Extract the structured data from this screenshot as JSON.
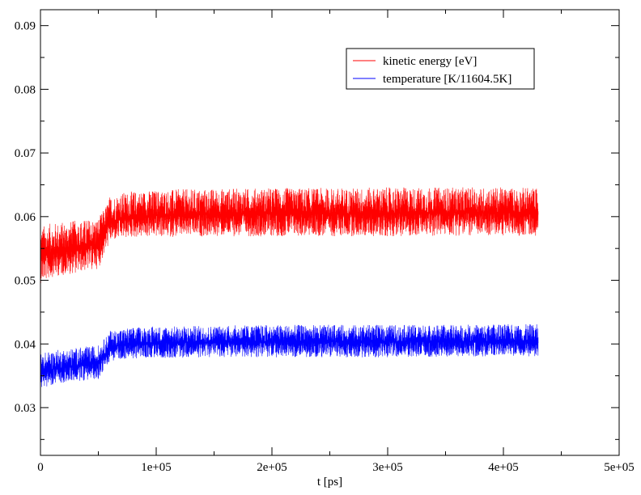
{
  "chart_data": {
    "type": "line",
    "title": "",
    "xlabel": "t [ps]",
    "ylabel": "",
    "xlim": [
      0,
      500000
    ],
    "ylim": [
      0.0225,
      0.0925
    ],
    "x_ticks": [
      0,
      100000,
      200000,
      300000,
      400000,
      500000
    ],
    "x_tick_labels": [
      "0",
      "1e+05",
      "2e+05",
      "3e+05",
      "4e+05",
      "5e+05"
    ],
    "y_ticks": [
      0.03,
      0.04,
      0.05,
      0.06,
      0.07,
      0.08,
      0.09
    ],
    "y_tick_labels": [
      "0.03",
      "0.04",
      "0.05",
      "0.06",
      "0.07",
      "0.08",
      "0.09"
    ],
    "grid": false,
    "legend_position": "top-right",
    "series": [
      {
        "name": "kinetic energy [eV]",
        "color": "#ff0000",
        "x": [
          0,
          10000,
          20000,
          30000,
          40000,
          50000,
          55000,
          60000,
          70000,
          80000,
          100000,
          120000,
          150000,
          200000,
          250000,
          300000,
          350000,
          400000,
          430000
        ],
        "mean": [
          0.0537,
          0.0543,
          0.0547,
          0.055,
          0.0553,
          0.0556,
          0.0575,
          0.0592,
          0.0597,
          0.06,
          0.0602,
          0.0603,
          0.0604,
          0.0605,
          0.0605,
          0.0605,
          0.0606,
          0.0606,
          0.0606
        ],
        "min": [
          0.0495,
          0.0505,
          0.0508,
          0.0511,
          0.0515,
          0.0518,
          0.054,
          0.056,
          0.0565,
          0.0567,
          0.0568,
          0.0568,
          0.0569,
          0.0569,
          0.0569,
          0.0569,
          0.057,
          0.057,
          0.057
        ],
        "max": [
          0.0585,
          0.059,
          0.0592,
          0.0594,
          0.0596,
          0.0598,
          0.0612,
          0.0632,
          0.0638,
          0.064,
          0.0642,
          0.0643,
          0.0644,
          0.0645,
          0.0645,
          0.0646,
          0.0646,
          0.0646,
          0.0646
        ]
      },
      {
        "name": "temperature [K/11604.5K]",
        "color": "#0000ff",
        "x": [
          0,
          10000,
          20000,
          30000,
          40000,
          50000,
          55000,
          60000,
          70000,
          80000,
          100000,
          120000,
          150000,
          200000,
          250000,
          300000,
          350000,
          400000,
          430000
        ],
        "mean": [
          0.0355,
          0.036,
          0.0363,
          0.0366,
          0.0368,
          0.037,
          0.0383,
          0.0395,
          0.0398,
          0.04,
          0.0401,
          0.0402,
          0.0403,
          0.0404,
          0.0404,
          0.0404,
          0.0404,
          0.0404,
          0.0404
        ],
        "min": [
          0.033,
          0.0336,
          0.0339,
          0.0341,
          0.0343,
          0.0345,
          0.036,
          0.0373,
          0.0376,
          0.0377,
          0.0378,
          0.0378,
          0.0379,
          0.0379,
          0.0379,
          0.0379,
          0.038,
          0.038,
          0.038
        ],
        "max": [
          0.0385,
          0.039,
          0.0392,
          0.0394,
          0.0396,
          0.0398,
          0.0408,
          0.0421,
          0.0424,
          0.0426,
          0.0428,
          0.0428,
          0.0429,
          0.043,
          0.043,
          0.043,
          0.043,
          0.0431,
          0.0431
        ]
      }
    ]
  }
}
